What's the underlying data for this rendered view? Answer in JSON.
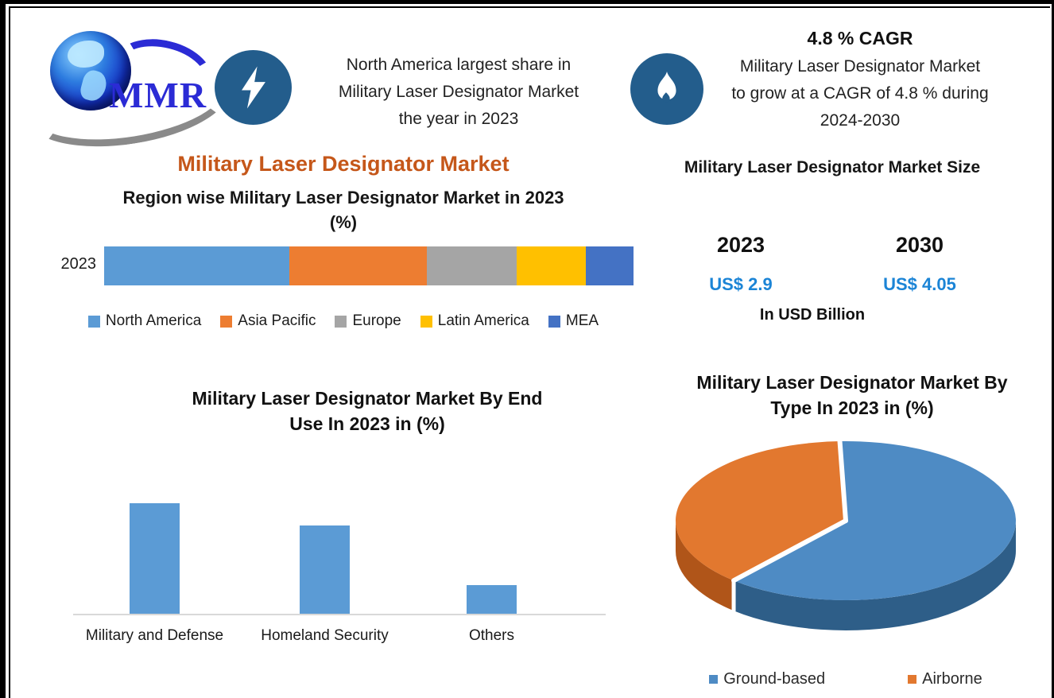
{
  "colors": {
    "badge_navy": "#235d8c",
    "title_orange": "#c5571a",
    "value_blue": "#1b84d6",
    "bar_blue": "#5b9bd5",
    "axis_gray": "#d9d9d9"
  },
  "logo": {
    "text": "MMR"
  },
  "header": {
    "callout_share": {
      "line1": "North America largest share in",
      "line2": "Military Laser Designator Market",
      "line3": "the year in 2023"
    },
    "callout_cagr": {
      "title": "4.8 % CAGR",
      "line1": "Military Laser Designator Market",
      "line2": "to grow at a CAGR of 4.8 % during",
      "line3": "2024-2030"
    }
  },
  "left_column": {
    "main_title": "Military Laser Designator Market",
    "region_title_line1": "Region wise Military Laser Designator Market in 2023",
    "region_title_line2": "(%)"
  },
  "market_size": {
    "title": "Military Laser Designator Market Size",
    "year_start": "2023",
    "year_end": "2030",
    "value_start": "US$ 2.9",
    "value_end": "US$ 4.05",
    "unit": "In USD Billion"
  },
  "bottom_left_title": {
    "line1": "Military Laser Designator Market By End",
    "line2": "Use In 2023 in (%)"
  },
  "bottom_right_title": {
    "line1": "Military Laser Designator Market By",
    "line2": "Type In 2023 in (%)"
  },
  "chart_data": [
    {
      "id": "region_share",
      "type": "stacked-bar",
      "title": "Region wise Military Laser Designator Market in 2023 (%)",
      "orientation": "horizontal",
      "categories": [
        "2023"
      ],
      "series": [
        {
          "name": "North America",
          "value": 35,
          "color": "#5b9bd5"
        },
        {
          "name": "Asia Pacific",
          "value": 26,
          "color": "#ed7d31"
        },
        {
          "name": "Europe",
          "value": 17,
          "color": "#a5a5a5"
        },
        {
          "name": "Latin America",
          "value": 13,
          "color": "#ffc000"
        },
        {
          "name": "MEA",
          "value": 9,
          "color": "#4472c4"
        }
      ],
      "unit": "%",
      "legend_position": "bottom",
      "grid": false
    },
    {
      "id": "end_use",
      "type": "bar",
      "title": "Military Laser Designator Market By End Use In 2023 in (%)",
      "categories": [
        "Military and Defense",
        "Homeland Security",
        "Others"
      ],
      "values": [
        50,
        40,
        13
      ],
      "color": "#5b9bd5",
      "ylim": [
        0,
        55
      ],
      "unit": "%",
      "grid": false,
      "value_labels_shown": false
    },
    {
      "id": "by_type",
      "type": "pie",
      "title": "Military Laser Designator Market By Type In 2023 in (%)",
      "labels": [
        "Ground-based",
        "Airborne"
      ],
      "values": [
        62,
        38
      ],
      "colors": [
        "#4e8bc4",
        "#e2782f"
      ],
      "rim_colors": [
        "#2e5e88",
        "#b05519"
      ],
      "style": "3d-exploded",
      "start": "top",
      "legend_position": "bottom"
    }
  ]
}
